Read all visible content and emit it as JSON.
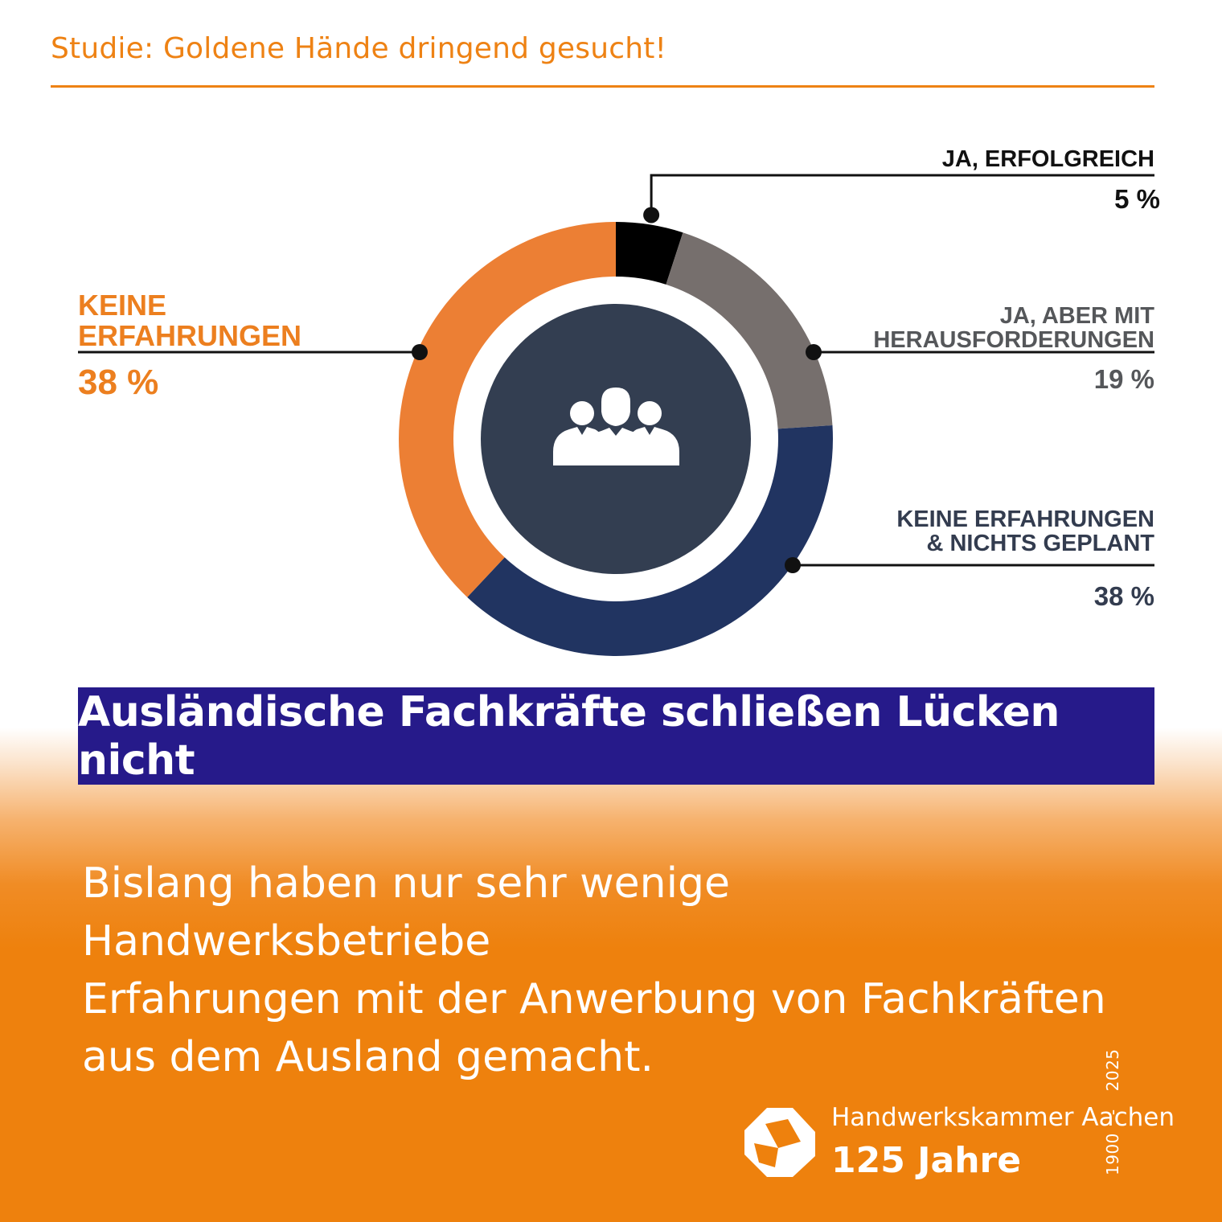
{
  "header": {
    "topic": "Studie: Goldene Hände dringend gesucht!"
  },
  "chart_data": {
    "type": "pie",
    "variant": "donut",
    "categories": [
      "JA, ERFOLGREICH",
      "JA, ABER MIT HERAUSFORDERUNGEN",
      "KEINE ERFAHRUNGEN & NICHTS GEPLANT",
      "KEINE ERFAHRUNGEN"
    ],
    "values": [
      5,
      19,
      38,
      38
    ],
    "value_labels": [
      "5 %",
      "19 %",
      "38 %",
      "38 %"
    ],
    "label_lines": [
      [
        "JA, ERFOLGREICH"
      ],
      [
        "JA, ABER MIT",
        "HERAUSFORDERUNGEN"
      ],
      [
        "KEINE ERFAHRUNGEN",
        "& NICHTS GEPLANT"
      ],
      [
        "KEINE",
        "ERFAHRUNGEN"
      ]
    ],
    "colors": [
      "#000000",
      "#766f6d",
      "#213461",
      "#ec7f34"
    ],
    "label_colors": [
      "#111111",
      "#55575a",
      "#333c4f",
      "#ec7f1f"
    ],
    "center_icon": "people-group-icon",
    "center_color": "#333e51"
  },
  "headline": "Ausländische Fachkräfte schließen Lücken nicht",
  "body_lines": [
    "Bislang haben nur sehr wenige Handwerksbetriebe",
    "Erfahrungen mit der Anwerbung von Fachkräften",
    "aus dem Ausland gemacht."
  ],
  "footer": {
    "org": "Handwerkskammer Aachen",
    "anniversary": "125 Jahre",
    "year_start": "1900",
    "year_sep": "-",
    "year_end": "2025",
    "logo_icon": "hwk-cube-logo-icon"
  }
}
